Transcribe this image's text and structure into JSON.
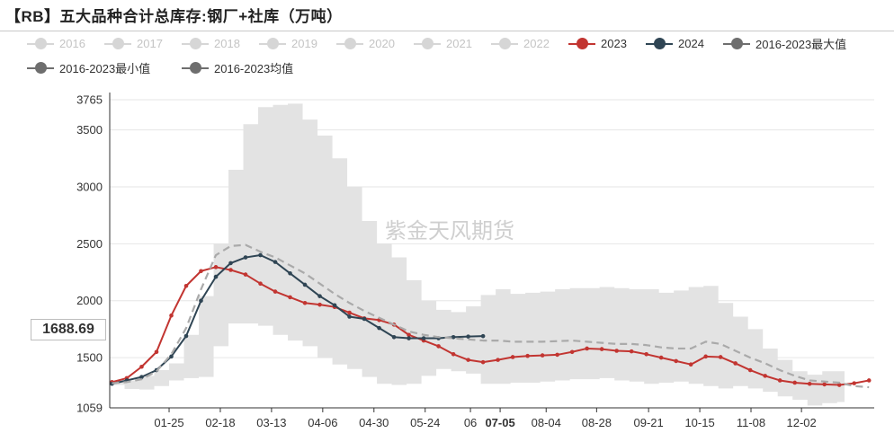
{
  "title": "【RB】五大品种合计总库存:钢厂+社库（万吨）",
  "watermark": "紫金天风期货",
  "cursor_value": "1688.69",
  "legend": [
    {
      "label": "2016",
      "active": false,
      "color": "#d6d6d6"
    },
    {
      "label": "2017",
      "active": false,
      "color": "#d6d6d6"
    },
    {
      "label": "2018",
      "active": false,
      "color": "#d6d6d6"
    },
    {
      "label": "2019",
      "active": false,
      "color": "#d6d6d6"
    },
    {
      "label": "2020",
      "active": false,
      "color": "#d6d6d6"
    },
    {
      "label": "2021",
      "active": false,
      "color": "#d6d6d6"
    },
    {
      "label": "2022",
      "active": false,
      "color": "#d6d6d6"
    },
    {
      "label": "2023",
      "active": true,
      "color": "#c23531"
    },
    {
      "label": "2024",
      "active": true,
      "color": "#2f4554"
    },
    {
      "label": "2016-2023最大值",
      "active": true,
      "color": "#6e6e6e"
    },
    {
      "label": "2016-2023最小值",
      "active": true,
      "color": "#6e6e6e"
    },
    {
      "label": "2016-2023均值",
      "active": true,
      "color": "#6e6e6e"
    }
  ],
  "chart_data": {
    "type": "line",
    "title": "【RB】五大品种合计总库存:钢厂+社库（万吨）",
    "ylim": [
      1059,
      3765
    ],
    "y_ticks": [
      1059,
      1500,
      2000,
      2500,
      3000,
      3500,
      3765
    ],
    "x_ticks": [
      "01-25",
      "02-18",
      "03-13",
      "04-06",
      "04-30",
      "05-24",
      "06",
      "07-05",
      "08-04",
      "08-28",
      "09-21",
      "10-15",
      "11-08",
      "12-02"
    ],
    "x_tick_weeks": [
      4,
      7.45,
      10.9,
      14.35,
      17.8,
      21.25,
      24.3,
      26.3,
      29.4,
      32.8,
      36.3,
      39.75,
      43.2,
      46.6
    ],
    "highlight_tick": "07-05",
    "grid": true,
    "band_max": [
      1290,
      1300,
      1340,
      1390,
      1450,
      1700,
      2040,
      2500,
      3150,
      3550,
      3700,
      3720,
      3730,
      3590,
      3450,
      3250,
      3000,
      2700,
      2500,
      2380,
      2180,
      2000,
      1920,
      1900,
      1950,
      2050,
      2100,
      2060,
      2070,
      2080,
      2100,
      2110,
      2110,
      2120,
      2110,
      2100,
      2100,
      2070,
      2090,
      2120,
      2130,
      1980,
      1860,
      1750,
      1580,
      1480,
      1380,
      1350,
      1380,
      1380
    ],
    "band_min": [
      1260,
      1225,
      1220,
      1250,
      1300,
      1320,
      1330,
      1600,
      1800,
      1800,
      1780,
      1700,
      1650,
      1600,
      1500,
      1440,
      1400,
      1330,
      1270,
      1260,
      1270,
      1340,
      1400,
      1380,
      1360,
      1270,
      1270,
      1280,
      1280,
      1290,
      1300,
      1310,
      1310,
      1320,
      1300,
      1290,
      1270,
      1280,
      1290,
      1270,
      1250,
      1230,
      1250,
      1230,
      1200,
      1160,
      1130,
      1080,
      1100,
      1110
    ],
    "series": [
      {
        "name": "2023",
        "color": "#c23531",
        "dashed": false,
        "values": [
          1285,
          1320,
          1420,
          1550,
          1870,
          2130,
          2260,
          2295,
          2270,
          2230,
          2150,
          2080,
          2030,
          1980,
          1965,
          1945,
          1895,
          1845,
          1830,
          1790,
          1700,
          1650,
          1600,
          1530,
          1480,
          1460,
          1480,
          1505,
          1515,
          1520,
          1525,
          1550,
          1580,
          1575,
          1560,
          1555,
          1530,
          1500,
          1470,
          1440,
          1510,
          1505,
          1450,
          1390,
          1340,
          1300,
          1280,
          1270,
          1265,
          1260,
          1275,
          1300
        ]
      },
      {
        "name": "2024",
        "color": "#2f4554",
        "dashed": false,
        "values": [
          1270,
          1300,
          1330,
          1390,
          1510,
          1690,
          2000,
          2210,
          2330,
          2380,
          2400,
          2340,
          2240,
          2140,
          2040,
          1960,
          1860,
          1840,
          1760,
          1680,
          1670,
          1670,
          1670,
          1680,
          1685,
          1688.69
        ]
      },
      {
        "name": "2016-2023均值",
        "color": "#aaaaaa",
        "dashed": true,
        "values": [
          1275,
          1285,
          1310,
          1380,
          1530,
          1760,
          2100,
          2400,
          2480,
          2490,
          2430,
          2380,
          2310,
          2240,
          2150,
          2060,
          1980,
          1910,
          1850,
          1790,
          1730,
          1700,
          1680,
          1670,
          1660,
          1650,
          1650,
          1640,
          1640,
          1640,
          1645,
          1650,
          1640,
          1630,
          1620,
          1620,
          1610,
          1590,
          1580,
          1580,
          1640,
          1620,
          1560,
          1500,
          1450,
          1390,
          1340,
          1300,
          1290,
          1280,
          1250,
          1240
        ]
      }
    ]
  }
}
